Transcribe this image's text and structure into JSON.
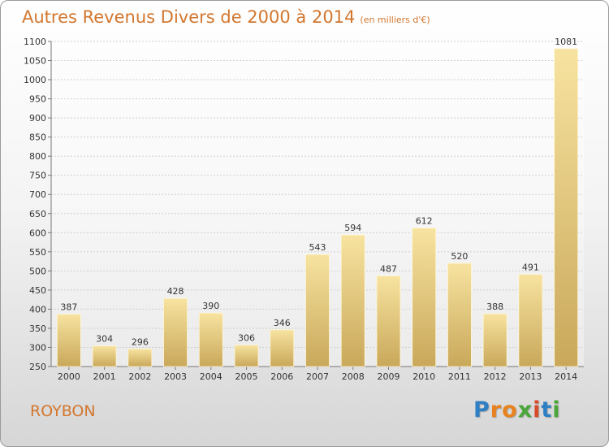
{
  "header": {
    "title": "Autres Revenus Divers de 2000 à 2014",
    "subtitle": "(en milliers d'€)"
  },
  "footer": {
    "commune": "ROYBON",
    "logo_text": "Proxiti"
  },
  "colors": {
    "title": "#d2772f",
    "bar_top": "#f7e3a0",
    "bar_bottom": "#c9a85a",
    "grid": "#cfcfcf"
  },
  "chart_data": {
    "type": "bar",
    "title": "Autres Revenus Divers de 2000 à 2014",
    "subtitle": "(en milliers d'€)",
    "xlabel": "",
    "ylabel": "",
    "categories": [
      "2000",
      "2001",
      "2002",
      "2003",
      "2004",
      "2005",
      "2006",
      "2007",
      "2008",
      "2009",
      "2010",
      "2011",
      "2012",
      "2013",
      "2014"
    ],
    "values": [
      387,
      304,
      296,
      428,
      390,
      306,
      346,
      543,
      594,
      487,
      612,
      520,
      388,
      491,
      1081
    ],
    "ylim": [
      250,
      1100
    ],
    "yticks": [
      250,
      300,
      350,
      400,
      450,
      500,
      550,
      600,
      650,
      700,
      750,
      800,
      850,
      900,
      950,
      1000,
      1050,
      1100
    ],
    "grid": true,
    "legend": "none"
  }
}
